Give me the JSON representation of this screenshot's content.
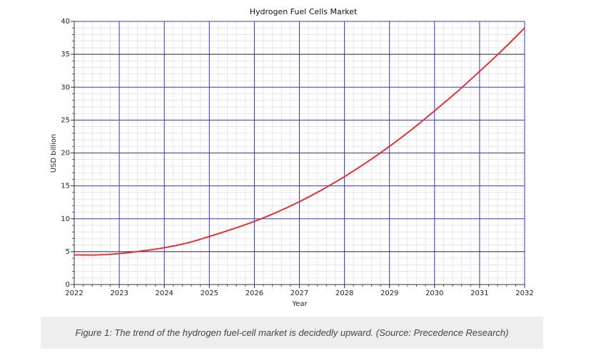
{
  "chart_data": {
    "type": "line",
    "title": "Hydrogen Fuel Cells Market",
    "xlabel": "Year",
    "ylabel": "USD billion",
    "xlim": [
      2022,
      2032
    ],
    "ylim": [
      0,
      40
    ],
    "x_ticks": [
      2022,
      2023,
      2024,
      2025,
      2026,
      2027,
      2028,
      2029,
      2030,
      2031,
      2032
    ],
    "y_ticks": [
      0,
      5,
      10,
      15,
      20,
      25,
      30,
      35,
      40
    ],
    "grid": true,
    "legend": "none",
    "series": [
      {
        "color": "#ff1a1a",
        "x": [
          2022,
          2022.5,
          2023,
          2023.5,
          2024,
          2024.5,
          2025,
          2025.5,
          2026,
          2026.5,
          2027,
          2027.5,
          2028,
          2028.5,
          2029,
          2029.5,
          2030,
          2030.5,
          2031,
          2031.5,
          2032
        ],
        "y": [
          4.5,
          4.5,
          4.7,
          5.1,
          5.6,
          6.3,
          7.3,
          8.4,
          9.6,
          11.0,
          12.6,
          14.4,
          16.4,
          18.6,
          21.0,
          23.6,
          26.4,
          29.3,
          32.4,
          35.6,
          39.0
        ]
      }
    ],
    "colors": {
      "grid_major": "#3333ee",
      "grid_minor": "#d8d8e8",
      "axis": "#333333"
    }
  },
  "caption": "Figure 1: The trend of the hydrogen fuel-cell market is decidedly upward. (Source: Precedence Research)"
}
